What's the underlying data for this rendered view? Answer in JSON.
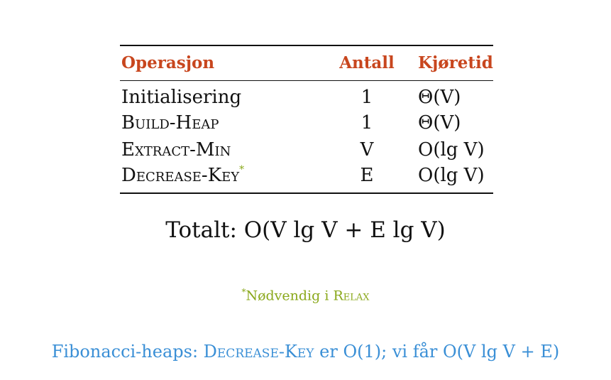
{
  "colors": {
    "header": "#c8461e",
    "footnote": "#8aa81b",
    "fib": "#3a8fd6",
    "text": "#111111"
  },
  "table": {
    "headers": [
      "Operasjon",
      "Antall",
      "Kjøretid"
    ],
    "rows": [
      {
        "op": "Initialisering",
        "count": "1",
        "time": "Θ(V)",
        "smallcaps": false,
        "starred": false
      },
      {
        "op": "Build-Heap",
        "count": "1",
        "time": "Θ(V)",
        "smallcaps": true,
        "starred": false
      },
      {
        "op": "Extract-Min",
        "count": "V",
        "time": "O(lg V)",
        "smallcaps": true,
        "starred": false
      },
      {
        "op": "Decrease-Key",
        "count": "E",
        "time": "O(lg V)",
        "smallcaps": true,
        "starred": true
      }
    ],
    "star": "*"
  },
  "total": "Totalt:  O(V lg V + E lg V)",
  "footnote": {
    "star": "*",
    "text": "Nødvendig i ",
    "relax": "Relax"
  },
  "fib": {
    "prefix": "Fibonacci-heaps: ",
    "key": "Decrease-Key",
    "suffix": " er O(1); vi får O(V lg V + E)"
  }
}
